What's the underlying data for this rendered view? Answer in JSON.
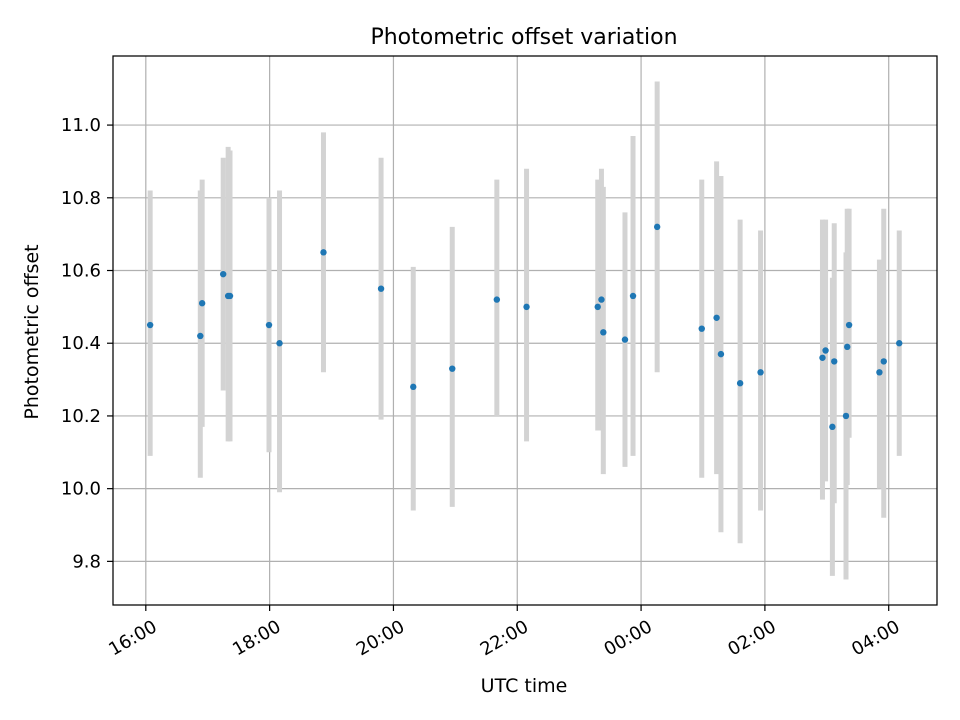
{
  "chart_data": {
    "type": "scatter",
    "title": "Photometric offset variation",
    "xlabel": "UTC time",
    "ylabel": "Photometric offset",
    "x_unit": "hours since 16:00 UTC",
    "xlim": [
      -0.53,
      12.78
    ],
    "ylim": [
      9.68,
      11.19
    ],
    "grid": true,
    "x_ticks": [
      {
        "value": 0,
        "label": "16:00"
      },
      {
        "value": 2,
        "label": "18:00"
      },
      {
        "value": 4,
        "label": "20:00"
      },
      {
        "value": 6,
        "label": "22:00"
      },
      {
        "value": 8,
        "label": "00:00"
      },
      {
        "value": 10,
        "label": "02:00"
      },
      {
        "value": 12,
        "label": "04:00"
      }
    ],
    "y_ticks": [
      {
        "value": 9.8,
        "label": "9.8"
      },
      {
        "value": 10.0,
        "label": "10.0"
      },
      {
        "value": 10.2,
        "label": "10.2"
      },
      {
        "value": 10.4,
        "label": "10.4"
      },
      {
        "value": 10.6,
        "label": "10.6"
      },
      {
        "value": 10.8,
        "label": "10.8"
      },
      {
        "value": 11.0,
        "label": "11.0"
      }
    ],
    "colors": {
      "point": "#1f77b4",
      "errorbar": "#d3d3d3",
      "grid": "#b0b0b0"
    },
    "series": [
      {
        "name": "photometric offset",
        "points": [
          {
            "x": 0.07,
            "y": 10.45,
            "lo": 10.09,
            "hi": 10.82
          },
          {
            "x": 0.88,
            "y": 10.42,
            "lo": 10.03,
            "hi": 10.82
          },
          {
            "x": 0.91,
            "y": 10.51,
            "lo": 10.17,
            "hi": 10.85
          },
          {
            "x": 1.25,
            "y": 10.59,
            "lo": 10.27,
            "hi": 10.91
          },
          {
            "x": 1.33,
            "y": 10.53,
            "lo": 10.13,
            "hi": 10.94
          },
          {
            "x": 1.36,
            "y": 10.53,
            "lo": 10.13,
            "hi": 10.93
          },
          {
            "x": 1.99,
            "y": 10.45,
            "lo": 10.1,
            "hi": 10.8
          },
          {
            "x": 2.16,
            "y": 10.4,
            "lo": 9.99,
            "hi": 10.82
          },
          {
            "x": 2.87,
            "y": 10.65,
            "lo": 10.32,
            "hi": 10.98
          },
          {
            "x": 3.8,
            "y": 10.55,
            "lo": 10.19,
            "hi": 10.91
          },
          {
            "x": 4.32,
            "y": 10.28,
            "lo": 9.94,
            "hi": 10.61
          },
          {
            "x": 4.95,
            "y": 10.33,
            "lo": 9.95,
            "hi": 10.72
          },
          {
            "x": 5.67,
            "y": 10.52,
            "lo": 10.2,
            "hi": 10.85
          },
          {
            "x": 6.15,
            "y": 10.5,
            "lo": 10.13,
            "hi": 10.88
          },
          {
            "x": 7.3,
            "y": 10.5,
            "lo": 10.16,
            "hi": 10.85
          },
          {
            "x": 7.36,
            "y": 10.52,
            "lo": 10.16,
            "hi": 10.88
          },
          {
            "x": 7.39,
            "y": 10.43,
            "lo": 10.04,
            "hi": 10.83
          },
          {
            "x": 7.74,
            "y": 10.41,
            "lo": 10.06,
            "hi": 10.76
          },
          {
            "x": 7.87,
            "y": 10.53,
            "lo": 10.09,
            "hi": 10.97
          },
          {
            "x": 8.26,
            "y": 10.72,
            "lo": 10.32,
            "hi": 11.12
          },
          {
            "x": 8.98,
            "y": 10.44,
            "lo": 10.03,
            "hi": 10.85
          },
          {
            "x": 9.22,
            "y": 10.47,
            "lo": 10.04,
            "hi": 10.9
          },
          {
            "x": 9.29,
            "y": 10.37,
            "lo": 9.88,
            "hi": 10.86
          },
          {
            "x": 9.6,
            "y": 10.29,
            "lo": 9.85,
            "hi": 10.74
          },
          {
            "x": 9.93,
            "y": 10.32,
            "lo": 9.94,
            "hi": 10.71
          },
          {
            "x": 10.93,
            "y": 10.36,
            "lo": 9.97,
            "hi": 10.74
          },
          {
            "x": 10.98,
            "y": 10.38,
            "lo": 10.02,
            "hi": 10.74
          },
          {
            "x": 11.09,
            "y": 10.17,
            "lo": 9.76,
            "hi": 10.58
          },
          {
            "x": 11.12,
            "y": 10.35,
            "lo": 9.96,
            "hi": 10.73
          },
          {
            "x": 11.31,
            "y": 10.2,
            "lo": 9.75,
            "hi": 10.65
          },
          {
            "x": 11.33,
            "y": 10.39,
            "lo": 10.01,
            "hi": 10.77
          },
          {
            "x": 11.36,
            "y": 10.45,
            "lo": 10.14,
            "hi": 10.77
          },
          {
            "x": 11.85,
            "y": 10.32,
            "lo": 10.0,
            "hi": 10.63
          },
          {
            "x": 11.92,
            "y": 10.35,
            "lo": 9.92,
            "hi": 10.77
          },
          {
            "x": 12.17,
            "y": 10.4,
            "lo": 10.09,
            "hi": 10.71
          }
        ]
      }
    ]
  }
}
